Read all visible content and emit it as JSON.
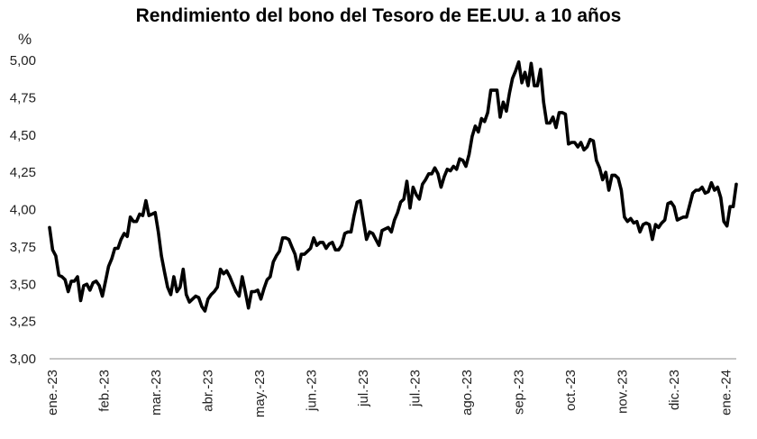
{
  "chart_data": {
    "type": "line",
    "title": "Rendimiento del bono del Tesoro de EE.UU. a 10 años",
    "ylabel": "%",
    "xlabel": "",
    "ylim": [
      3.0,
      5.0
    ],
    "yticks": [
      "3,00",
      "3,25",
      "3,50",
      "3,75",
      "4,00",
      "4,25",
      "4,50",
      "4,75",
      "5,00"
    ],
    "xtick_labels": [
      "ene.-23",
      "feb.-23",
      "mar.-23",
      "abr.-23",
      "may.-23",
      "jun.-23",
      "jul.-23",
      "jul.-23",
      "ago.-23",
      "sep.-23",
      "oct.-23",
      "nov.-23",
      "dic.-23",
      "ene.-24"
    ],
    "grid": false,
    "legend": "none",
    "line_color": "#000000",
    "series": [
      {
        "values": [
          3.88,
          3.73,
          3.69,
          3.56,
          3.55,
          3.53,
          3.45,
          3.52,
          3.52,
          3.55,
          3.39,
          3.49,
          3.5,
          3.46,
          3.51,
          3.52,
          3.49,
          3.42,
          3.52,
          3.62,
          3.67,
          3.74,
          3.74,
          3.8,
          3.84,
          3.82,
          3.95,
          3.92,
          3.92,
          3.97,
          3.96,
          4.06,
          3.96,
          3.97,
          3.98,
          3.85,
          3.69,
          3.58,
          3.48,
          3.43,
          3.55,
          3.45,
          3.48,
          3.6,
          3.43,
          3.38,
          3.4,
          3.42,
          3.41,
          3.35,
          3.32,
          3.4,
          3.43,
          3.45,
          3.48,
          3.6,
          3.57,
          3.59,
          3.55,
          3.5,
          3.45,
          3.42,
          3.55,
          3.45,
          3.34,
          3.45,
          3.45,
          3.46,
          3.4,
          3.47,
          3.53,
          3.55,
          3.65,
          3.69,
          3.72,
          3.81,
          3.81,
          3.8,
          3.75,
          3.7,
          3.6,
          3.7,
          3.7,
          3.72,
          3.74,
          3.81,
          3.76,
          3.78,
          3.78,
          3.74,
          3.77,
          3.78,
          3.73,
          3.73,
          3.76,
          3.84,
          3.85,
          3.85,
          3.96,
          4.05,
          4.06,
          3.93,
          3.8,
          3.85,
          3.84,
          3.8,
          3.76,
          3.86,
          3.87,
          3.88,
          3.85,
          3.93,
          3.98,
          4.05,
          4.07,
          4.19,
          4.01,
          4.15,
          4.1,
          4.07,
          4.17,
          4.2,
          4.24,
          4.24,
          4.28,
          4.24,
          4.15,
          4.22,
          4.27,
          4.26,
          4.29,
          4.27,
          4.34,
          4.33,
          4.29,
          4.37,
          4.49,
          4.56,
          4.52,
          4.61,
          4.59,
          4.65,
          4.8,
          4.8,
          4.8,
          4.62,
          4.72,
          4.66,
          4.78,
          4.88,
          4.93,
          4.99,
          4.85,
          4.92,
          4.83,
          4.98,
          4.83,
          4.83,
          4.94,
          4.72,
          4.58,
          4.58,
          4.62,
          4.55,
          4.65,
          4.65,
          4.64,
          4.44,
          4.45,
          4.45,
          4.42,
          4.45,
          4.4,
          4.42,
          4.47,
          4.46,
          4.33,
          4.28,
          4.2,
          4.25,
          4.13,
          4.23,
          4.23,
          4.21,
          4.13,
          3.95,
          3.92,
          3.94,
          3.91,
          3.92,
          3.85,
          3.9,
          3.91,
          3.9,
          3.8,
          3.9,
          3.88,
          3.91,
          3.93,
          4.04,
          4.05,
          4.02,
          3.93,
          3.94,
          3.95,
          3.95,
          4.03,
          4.11,
          4.13,
          4.13,
          4.15,
          4.11,
          4.12,
          4.18,
          4.13,
          4.15,
          4.08,
          3.92,
          3.89,
          4.02,
          4.02,
          4.17
        ]
      }
    ]
  }
}
